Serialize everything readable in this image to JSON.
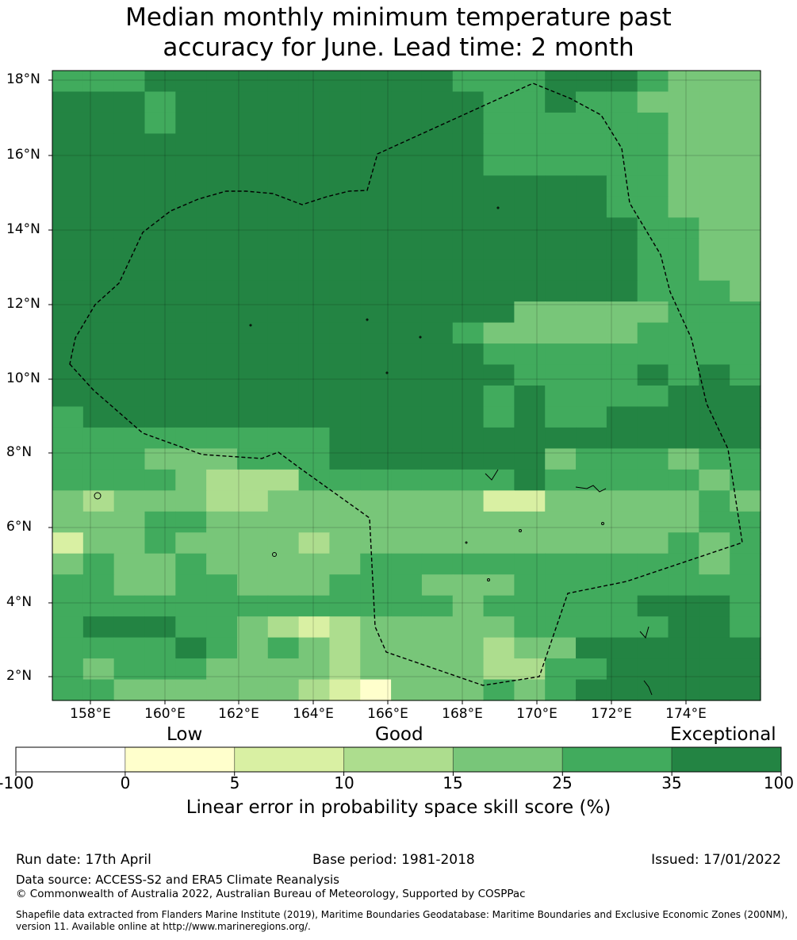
{
  "title_line1": "Median monthly minimum temperature past",
  "title_line2": "accuracy for June. Lead time: 2 month",
  "map": {
    "lat_labels": [
      "18°N",
      "16°N",
      "14°N",
      "12°N",
      "10°N",
      "8°N",
      "6°N",
      "4°N",
      "2°N"
    ],
    "lon_labels": [
      "158°E",
      "160°E",
      "162°E",
      "164°E",
      "166°E",
      "168°E",
      "170°E",
      "172°E",
      "174°E"
    ],
    "lon_range": [
      157,
      176.1
    ],
    "lat_range": [
      1.4,
      18.3
    ],
    "boundary": "dashed EEZ outline (black)"
  },
  "colorbar": {
    "category_labels": [
      "Low",
      "Good",
      "Exceptional"
    ],
    "ticks": [
      "-100",
      "0",
      "5",
      "10",
      "15",
      "25",
      "35",
      "100"
    ],
    "colors": [
      "#ffffff",
      "#ffffcc",
      "#d9f0a3",
      "#addd8e",
      "#78c679",
      "#41ab5d",
      "#238443"
    ],
    "title": "Linear error in probability space skill score (%)"
  },
  "footer": {
    "run_date": "Run date: 17th April",
    "base_period": "Base period: 1981-2018",
    "issued": "Issued: 17/01/2022",
    "data_source": "Data source: ACCESS-S2 and ERA5 Climate Reanalysis",
    "copyright": "© Commonwealth of Australia 2022, Australian Bureau of Meteorology, Supported by COSPPac",
    "shapefile_note": "Shapefile data extracted from Flanders Marine Institute (2019), Maritime Boundaries Geodatabase: Maritime Boundaries and Exclusive Economic Zones (200NM), version 11. Available online at http://www.marineregions.org/."
  }
}
